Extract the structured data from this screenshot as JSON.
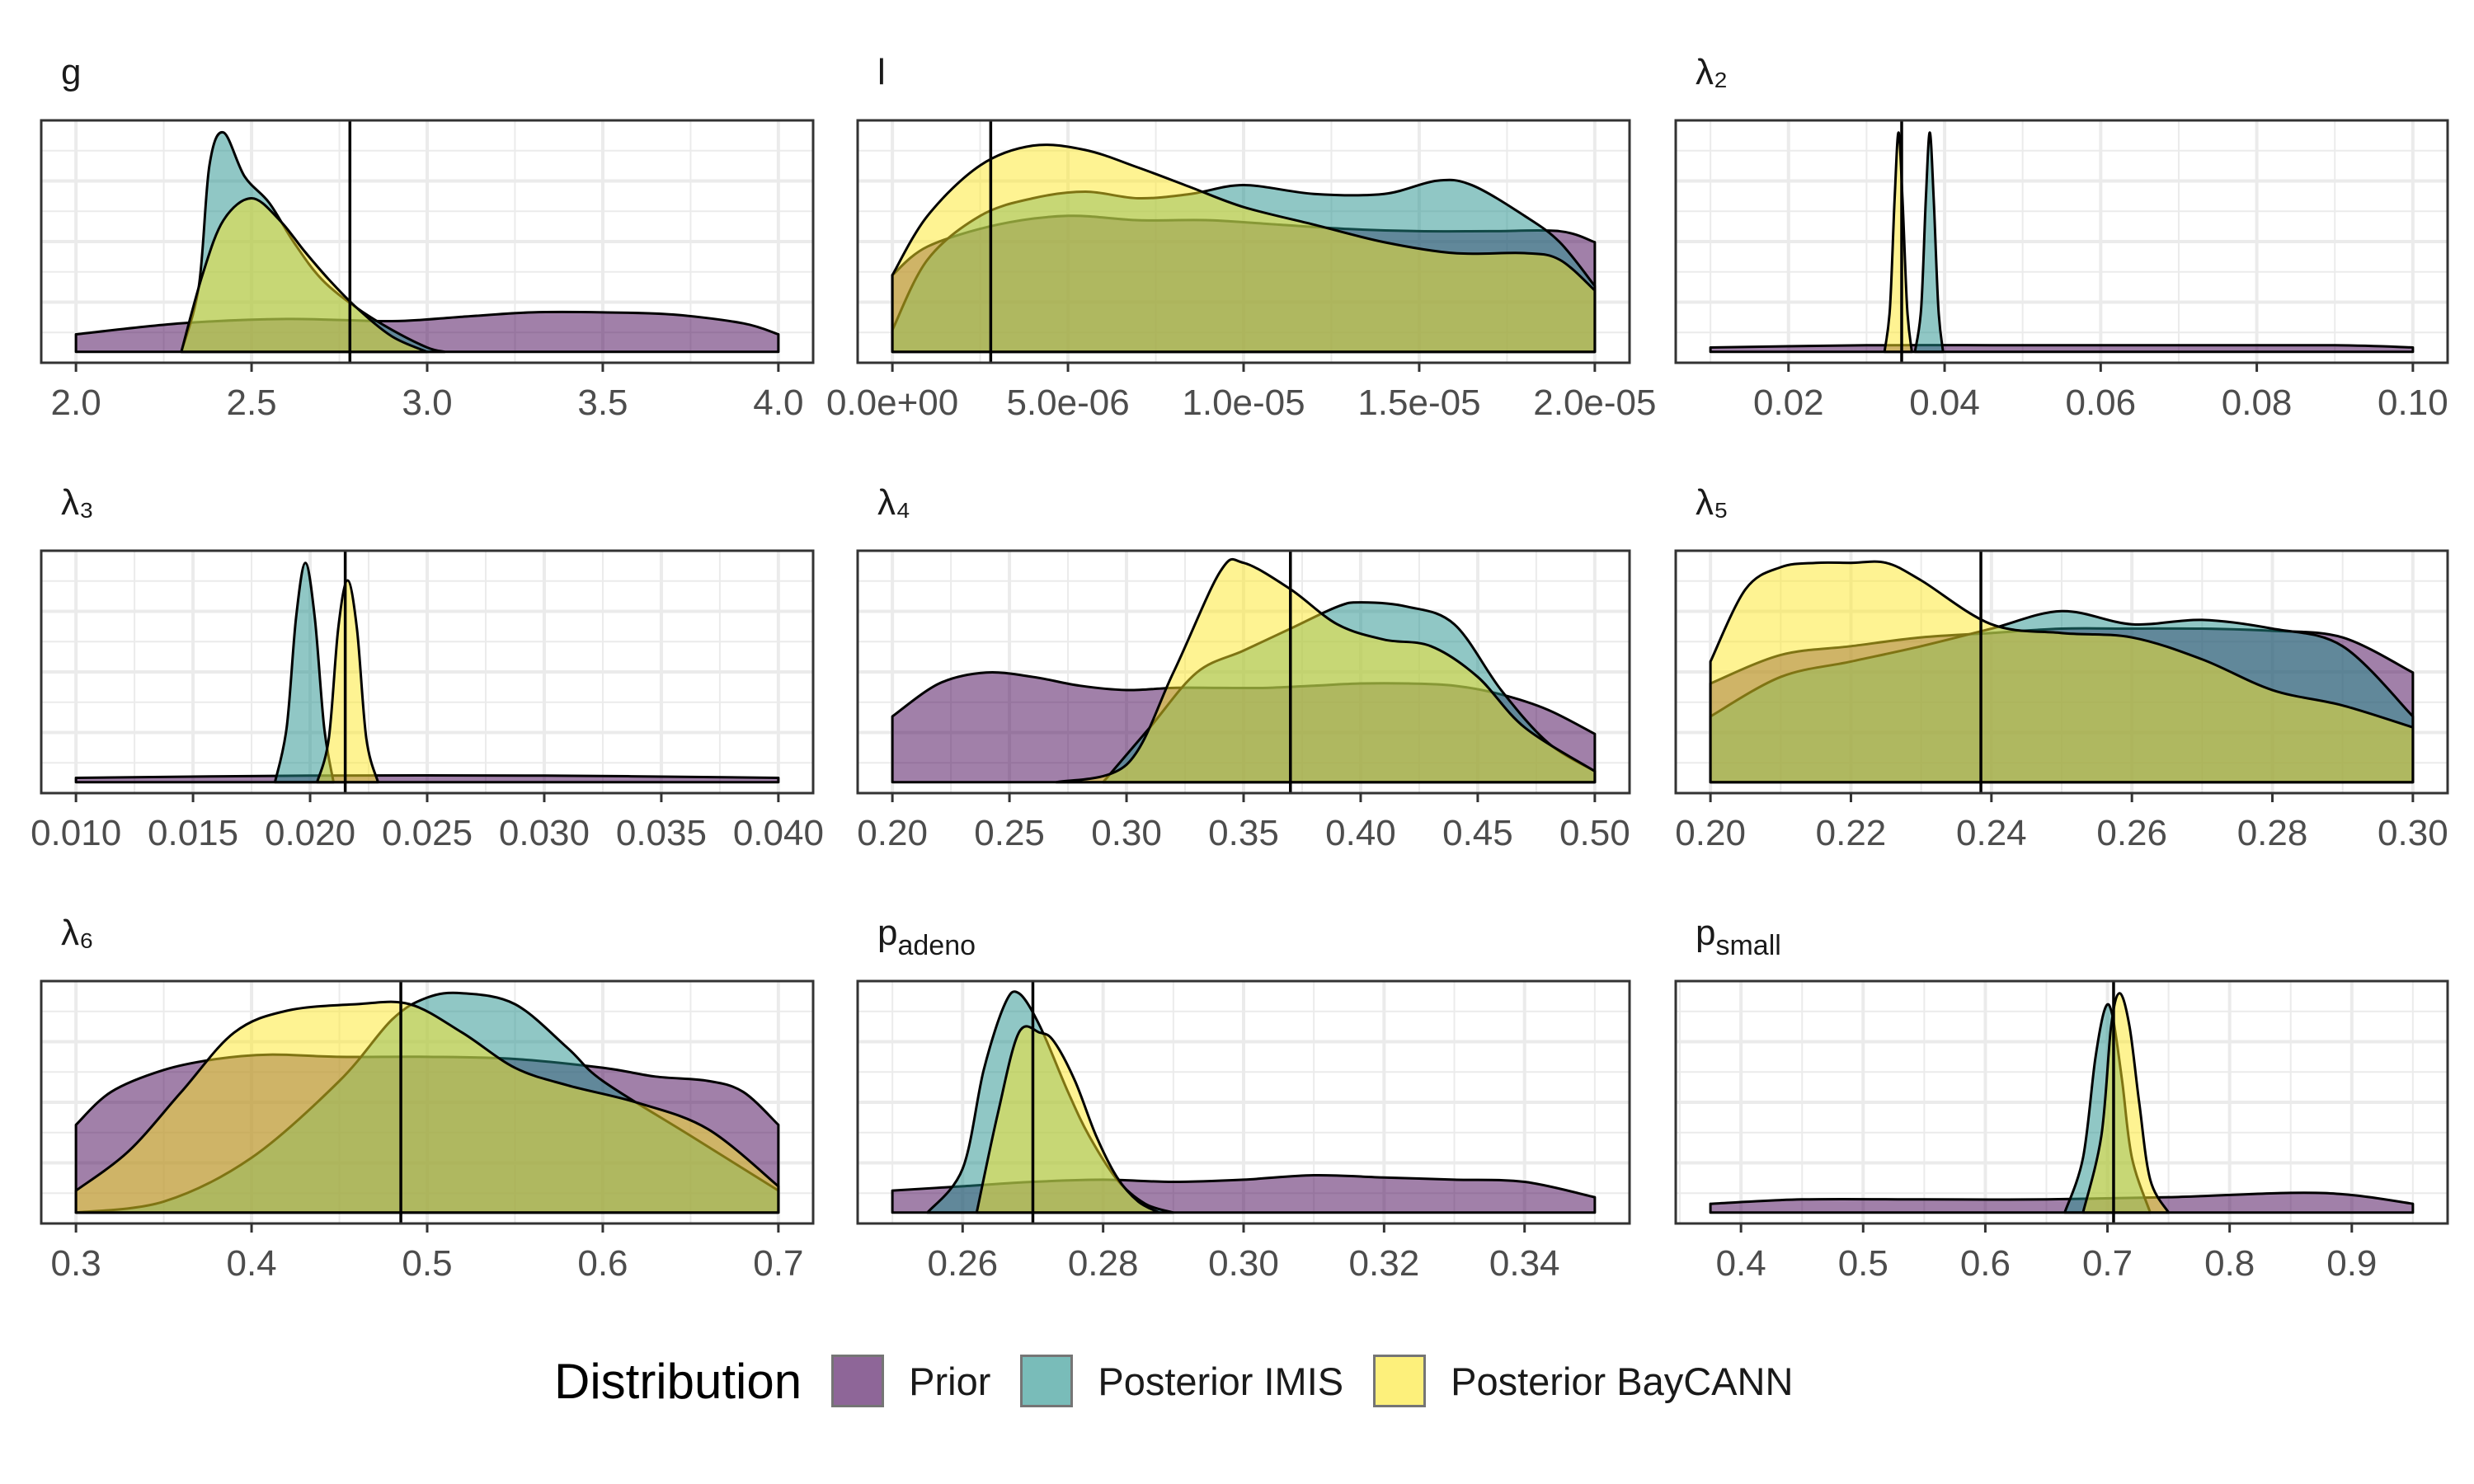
{
  "legend": {
    "title": "Distribution",
    "items": [
      {
        "label": "Prior",
        "color": "#440154"
      },
      {
        "label": "Posterior IMIS",
        "color": "#21908C"
      },
      {
        "label": "Posterior BayCANN",
        "color": "#FDE725"
      }
    ]
  },
  "chart_data": [
    {
      "type": "area",
      "title": "g",
      "xlim": [
        2.0,
        4.0
      ],
      "ticks": [
        2.0,
        2.5,
        3.0,
        3.5,
        4.0
      ],
      "tick_labels": [
        "2.0",
        "2.5",
        "3.0",
        "3.5",
        "4.0"
      ],
      "vline": 2.78,
      "series": [
        {
          "name": "Prior",
          "x": [
            2.0,
            2.3,
            2.6,
            2.9,
            3.1,
            3.3,
            3.5,
            3.7,
            3.9,
            4.0
          ],
          "y": [
            0.08,
            0.13,
            0.15,
            0.14,
            0.16,
            0.18,
            0.18,
            0.17,
            0.13,
            0.08
          ]
        },
        {
          "name": "Posterior IMIS",
          "x": [
            2.3,
            2.35,
            2.38,
            2.42,
            2.48,
            2.55,
            2.62,
            2.7,
            2.8,
            2.9,
            3.0,
            3.05
          ],
          "y": [
            0,
            0.3,
            0.85,
            1.0,
            0.8,
            0.68,
            0.5,
            0.33,
            0.2,
            0.1,
            0.02,
            0
          ]
        },
        {
          "name": "Posterior BayCANN",
          "x": [
            2.3,
            2.36,
            2.42,
            2.5,
            2.58,
            2.65,
            2.72,
            2.8,
            2.9,
            3.0
          ],
          "y": [
            0,
            0.35,
            0.6,
            0.7,
            0.6,
            0.46,
            0.33,
            0.2,
            0.07,
            0
          ]
        }
      ]
    },
    {
      "type": "area",
      "title": "l",
      "xlim": [
        0,
        2e-05
      ],
      "ticks": [
        0,
        5e-06,
        1e-05,
        1.5e-05,
        2e-05
      ],
      "tick_labels": [
        "0.0e+00",
        "5.0e-06",
        "1.0e-05",
        "1.5e-05",
        "2.0e-05"
      ],
      "vline": 2.8e-06,
      "series": [
        {
          "name": "Prior",
          "x": [
            0,
            1e-06,
            3e-06,
            5e-06,
            7e-06,
            9e-06,
            1.1e-05,
            1.3e-05,
            1.5e-05,
            1.7e-05,
            1.9e-05,
            2e-05
          ],
          "y": [
            0.35,
            0.48,
            0.58,
            0.62,
            0.6,
            0.6,
            0.58,
            0.56,
            0.55,
            0.55,
            0.55,
            0.5
          ]
        },
        {
          "name": "Posterior IMIS",
          "x": [
            0,
            1e-06,
            2.5e-06,
            4e-06,
            5.5e-06,
            7e-06,
            8.5e-06,
            1e-05,
            1.2e-05,
            1.4e-05,
            1.55e-05,
            1.65e-05,
            1.8e-05,
            1.9e-05,
            2e-05
          ],
          "y": [
            0.1,
            0.42,
            0.62,
            0.7,
            0.73,
            0.7,
            0.72,
            0.76,
            0.72,
            0.72,
            0.78,
            0.76,
            0.62,
            0.5,
            0.3
          ]
        },
        {
          "name": "Posterior BayCANN",
          "x": [
            0,
            1e-06,
            2.5e-06,
            4e-06,
            5.5e-06,
            7e-06,
            8.5e-06,
            1e-05,
            1.2e-05,
            1.4e-05,
            1.6e-05,
            1.8e-05,
            1.9e-05,
            2e-05
          ],
          "y": [
            0.35,
            0.62,
            0.85,
            0.94,
            0.92,
            0.84,
            0.75,
            0.66,
            0.58,
            0.5,
            0.45,
            0.45,
            0.42,
            0.28
          ]
        }
      ]
    },
    {
      "type": "area",
      "title": "λ₂",
      "xlim": [
        0.01,
        0.1
      ],
      "ticks": [
        0.02,
        0.04,
        0.06,
        0.08,
        0.1
      ],
      "tick_labels": [
        "0.02",
        "0.04",
        "0.06",
        "0.08",
        "0.10"
      ],
      "vline": 0.0345,
      "series": [
        {
          "name": "Prior",
          "x": [
            0.01,
            0.03,
            0.05,
            0.07,
            0.09,
            0.1
          ],
          "y": [
            0.02,
            0.03,
            0.03,
            0.03,
            0.03,
            0.02
          ]
        },
        {
          "name": "Posterior IMIS",
          "x": [
            0.0362,
            0.037,
            0.0376,
            0.0381,
            0.0386,
            0.0392,
            0.0398
          ],
          "y": [
            0,
            0.2,
            0.7,
            1.0,
            0.7,
            0.2,
            0
          ]
        },
        {
          "name": "Posterior BayCANN",
          "x": [
            0.0323,
            0.033,
            0.0336,
            0.0341,
            0.0346,
            0.0352,
            0.0358
          ],
          "y": [
            0,
            0.2,
            0.7,
            1.0,
            0.7,
            0.2,
            0
          ]
        }
      ]
    },
    {
      "type": "area",
      "title": "λ₃",
      "xlim": [
        0.01,
        0.04
      ],
      "ticks": [
        0.01,
        0.015,
        0.02,
        0.025,
        0.03,
        0.035,
        0.04
      ],
      "tick_labels": [
        "0.010",
        "0.015",
        "0.020",
        "0.025",
        "0.030",
        "0.035",
        "0.040"
      ],
      "vline": 0.0215,
      "series": [
        {
          "name": "Prior",
          "x": [
            0.01,
            0.02,
            0.03,
            0.04
          ],
          "y": [
            0.02,
            0.03,
            0.03,
            0.02
          ]
        },
        {
          "name": "Posterior IMIS",
          "x": [
            0.0185,
            0.019,
            0.0194,
            0.0198,
            0.0202,
            0.0206,
            0.021
          ],
          "y": [
            0,
            0.25,
            0.75,
            1.0,
            0.75,
            0.25,
            0
          ]
        },
        {
          "name": "Posterior BayCANN",
          "x": [
            0.0203,
            0.0208,
            0.0212,
            0.0216,
            0.022,
            0.0224,
            0.0229
          ],
          "y": [
            0,
            0.2,
            0.7,
            0.92,
            0.7,
            0.2,
            0
          ]
        }
      ]
    },
    {
      "type": "area",
      "title": "λ₄",
      "xlim": [
        0.2,
        0.5
      ],
      "ticks": [
        0.2,
        0.25,
        0.3,
        0.35,
        0.4,
        0.45,
        0.5
      ],
      "tick_labels": [
        "0.20",
        "0.25",
        "0.30",
        "0.35",
        "0.40",
        "0.45",
        "0.50"
      ],
      "vline": 0.37,
      "series": [
        {
          "name": "Prior",
          "x": [
            0.2,
            0.22,
            0.24,
            0.26,
            0.28,
            0.3,
            0.32,
            0.34,
            0.36,
            0.38,
            0.4,
            0.42,
            0.44,
            0.46,
            0.48,
            0.5
          ],
          "y": [
            0.3,
            0.45,
            0.5,
            0.48,
            0.44,
            0.42,
            0.43,
            0.43,
            0.43,
            0.44,
            0.45,
            0.45,
            0.44,
            0.4,
            0.33,
            0.22
          ]
        },
        {
          "name": "Posterior IMIS",
          "x": [
            0.29,
            0.31,
            0.33,
            0.35,
            0.37,
            0.39,
            0.4,
            0.42,
            0.44,
            0.46,
            0.48,
            0.5
          ],
          "y": [
            0,
            0.25,
            0.5,
            0.6,
            0.7,
            0.8,
            0.82,
            0.8,
            0.72,
            0.42,
            0.18,
            0.05
          ]
        },
        {
          "name": "Posterior BayCANN",
          "x": [
            0.27,
            0.3,
            0.32,
            0.34,
            0.35,
            0.37,
            0.39,
            0.41,
            0.43,
            0.45,
            0.47,
            0.5
          ],
          "y": [
            0,
            0.08,
            0.5,
            0.96,
            1.0,
            0.88,
            0.72,
            0.65,
            0.62,
            0.48,
            0.25,
            0.05
          ]
        }
      ]
    },
    {
      "type": "area",
      "title": "λ₅",
      "xlim": [
        0.2,
        0.3
      ],
      "ticks": [
        0.2,
        0.22,
        0.24,
        0.26,
        0.28,
        0.3
      ],
      "tick_labels": [
        "0.20",
        "0.22",
        "0.24",
        "0.26",
        "0.28",
        "0.30"
      ],
      "vline": 0.2385,
      "series": [
        {
          "name": "Prior",
          "x": [
            0.2,
            0.21,
            0.22,
            0.23,
            0.24,
            0.25,
            0.26,
            0.27,
            0.28,
            0.29,
            0.3
          ],
          "y": [
            0.45,
            0.58,
            0.62,
            0.66,
            0.68,
            0.7,
            0.7,
            0.7,
            0.69,
            0.66,
            0.5
          ]
        },
        {
          "name": "Posterior IMIS",
          "x": [
            0.2,
            0.21,
            0.22,
            0.23,
            0.24,
            0.25,
            0.26,
            0.27,
            0.28,
            0.29,
            0.3
          ],
          "y": [
            0.3,
            0.48,
            0.55,
            0.62,
            0.7,
            0.78,
            0.72,
            0.74,
            0.7,
            0.62,
            0.3
          ]
        },
        {
          "name": "Posterior BayCANN",
          "x": [
            0.2,
            0.205,
            0.21,
            0.215,
            0.22,
            0.225,
            0.23,
            0.24,
            0.25,
            0.26,
            0.27,
            0.28,
            0.29,
            0.3
          ],
          "y": [
            0.55,
            0.88,
            0.98,
            1.0,
            1.0,
            1.0,
            0.92,
            0.72,
            0.68,
            0.66,
            0.56,
            0.42,
            0.35,
            0.25
          ]
        }
      ]
    },
    {
      "type": "area",
      "title": "λ₆",
      "xlim": [
        0.3,
        0.7
      ],
      "ticks": [
        0.3,
        0.4,
        0.5,
        0.6,
        0.7
      ],
      "tick_labels": [
        "0.3",
        "0.4",
        "0.5",
        "0.6",
        "0.7"
      ],
      "vline": 0.485,
      "series": [
        {
          "name": "Prior",
          "x": [
            0.3,
            0.32,
            0.35,
            0.38,
            0.41,
            0.45,
            0.5,
            0.55,
            0.6,
            0.63,
            0.66,
            0.68,
            0.7
          ],
          "y": [
            0.4,
            0.55,
            0.65,
            0.7,
            0.72,
            0.71,
            0.71,
            0.7,
            0.66,
            0.62,
            0.6,
            0.55,
            0.4
          ]
        },
        {
          "name": "Posterior IMIS",
          "x": [
            0.3,
            0.35,
            0.4,
            0.45,
            0.48,
            0.5,
            0.52,
            0.55,
            0.58,
            0.6,
            0.65,
            0.7
          ],
          "y": [
            0,
            0.05,
            0.25,
            0.6,
            0.88,
            0.98,
            1.0,
            0.95,
            0.75,
            0.6,
            0.35,
            0.1
          ]
        },
        {
          "name": "Posterior BayCANN",
          "x": [
            0.3,
            0.33,
            0.36,
            0.39,
            0.42,
            0.46,
            0.49,
            0.52,
            0.55,
            0.58,
            0.62,
            0.66,
            0.7
          ],
          "y": [
            0.1,
            0.28,
            0.55,
            0.82,
            0.92,
            0.95,
            0.95,
            0.82,
            0.66,
            0.58,
            0.5,
            0.38,
            0.12
          ]
        }
      ]
    },
    {
      "type": "area",
      "title": "p_adeno",
      "title_main": "p",
      "title_sub": "adeno",
      "xlim": [
        0.25,
        0.35
      ],
      "ticks": [
        0.26,
        0.28,
        0.3,
        0.32,
        0.34
      ],
      "tick_labels": [
        "0.26",
        "0.28",
        "0.30",
        "0.32",
        "0.34"
      ],
      "vline": 0.27,
      "series": [
        {
          "name": "Prior",
          "x": [
            0.25,
            0.26,
            0.27,
            0.28,
            0.29,
            0.3,
            0.31,
            0.32,
            0.33,
            0.34,
            0.35
          ],
          "y": [
            0.1,
            0.12,
            0.14,
            0.15,
            0.14,
            0.15,
            0.17,
            0.16,
            0.15,
            0.14,
            0.07
          ]
        },
        {
          "name": "Posterior IMIS",
          "x": [
            0.255,
            0.26,
            0.263,
            0.266,
            0.268,
            0.271,
            0.275,
            0.278,
            0.282,
            0.286,
            0.29
          ],
          "y": [
            0,
            0.2,
            0.65,
            0.95,
            1.0,
            0.85,
            0.55,
            0.35,
            0.15,
            0.04,
            0
          ]
        },
        {
          "name": "Posterior BayCANN",
          "x": [
            0.262,
            0.265,
            0.268,
            0.271,
            0.273,
            0.276,
            0.279,
            0.282,
            0.285,
            0.288
          ],
          "y": [
            0,
            0.45,
            0.82,
            0.82,
            0.78,
            0.6,
            0.35,
            0.16,
            0.05,
            0
          ]
        }
      ]
    },
    {
      "type": "area",
      "title": "p_small",
      "title_main": "p",
      "title_sub": "small",
      "xlim": [
        0.375,
        0.95
      ],
      "ticks": [
        0.4,
        0.5,
        0.6,
        0.7,
        0.8,
        0.9
      ],
      "tick_labels": [
        "0.4",
        "0.5",
        "0.6",
        "0.7",
        "0.8",
        "0.9"
      ],
      "vline": 0.705,
      "series": [
        {
          "name": "Prior",
          "x": [
            0.375,
            0.45,
            0.55,
            0.65,
            0.75,
            0.85,
            0.9,
            0.95
          ],
          "y": [
            0.04,
            0.06,
            0.06,
            0.06,
            0.07,
            0.09,
            0.08,
            0.04
          ]
        },
        {
          "name": "Posterior IMIS",
          "x": [
            0.665,
            0.68,
            0.69,
            0.698,
            0.704,
            0.712,
            0.72,
            0.735
          ],
          "y": [
            0,
            0.25,
            0.7,
            0.93,
            0.9,
            0.6,
            0.25,
            0
          ]
        },
        {
          "name": "Posterior BayCANN",
          "x": [
            0.68,
            0.695,
            0.703,
            0.71,
            0.718,
            0.726,
            0.735,
            0.75
          ],
          "y": [
            0,
            0.35,
            0.85,
            1.0,
            0.85,
            0.5,
            0.15,
            0
          ]
        }
      ]
    }
  ]
}
